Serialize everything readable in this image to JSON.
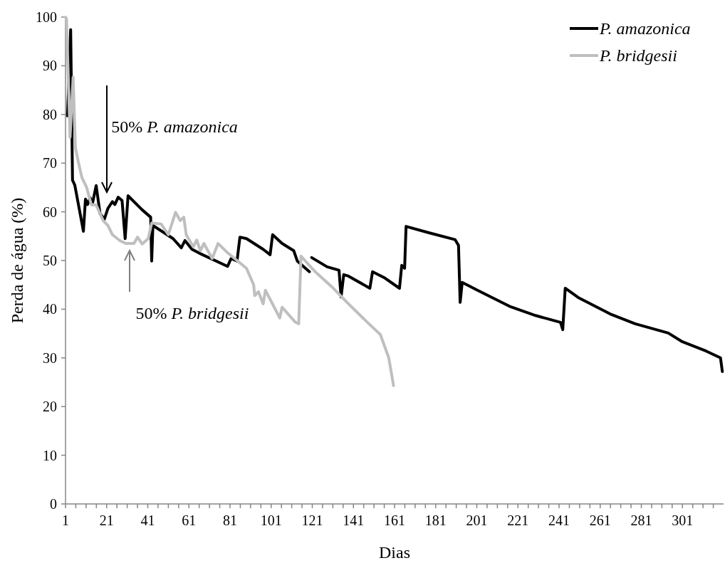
{
  "chart_data": {
    "type": "line",
    "xlabel": "Dias",
    "ylabel": "Perda de água (%)",
    "xlim": [
      1,
      321
    ],
    "ylim": [
      0,
      100
    ],
    "yticks": [
      0,
      10,
      20,
      30,
      40,
      50,
      60,
      70,
      80,
      90,
      100
    ],
    "xticks": [
      1,
      {
        "value": 6,
        "label": null
      },
      {
        "value": 11,
        "label": null
      },
      {
        "value": 16,
        "label": null
      },
      21,
      {
        "value": 26,
        "label": null
      },
      {
        "value": 31,
        "label": null
      },
      {
        "value": 36,
        "label": null
      },
      41,
      {
        "value": 46,
        "label": null
      },
      {
        "value": 51,
        "label": null
      },
      {
        "value": 56,
        "label": null
      },
      61,
      {
        "value": 66,
        "label": null
      },
      {
        "value": 71,
        "label": null
      },
      {
        "value": 76,
        "label": null
      },
      81,
      {
        "value": 86,
        "label": null
      },
      {
        "value": 91,
        "label": null
      },
      {
        "value": 96,
        "label": null
      },
      101,
      {
        "value": 106,
        "label": null
      },
      {
        "value": 111,
        "label": null
      },
      {
        "value": 116,
        "label": null
      },
      121,
      {
        "value": 126,
        "label": null
      },
      {
        "value": 131,
        "label": null
      },
      {
        "value": 136,
        "label": null
      },
      141,
      {
        "value": 146,
        "label": null
      },
      {
        "value": 151,
        "label": null
      },
      {
        "value": 156,
        "label": null
      },
      161,
      {
        "value": 166,
        "label": null
      },
      {
        "value": 171,
        "label": null
      },
      {
        "value": 176,
        "label": null
      },
      181,
      {
        "value": 186,
        "label": null
      },
      {
        "value": 191,
        "label": null
      },
      {
        "value": 196,
        "label": null
      },
      201,
      {
        "value": 206,
        "label": null
      },
      {
        "value": 211,
        "label": null
      },
      {
        "value": 216,
        "label": null
      },
      221,
      {
        "value": 226,
        "label": null
      },
      {
        "value": 231,
        "label": null
      },
      {
        "value": 236,
        "label": null
      },
      241,
      {
        "value": 246,
        "label": null
      },
      {
        "value": 251,
        "label": null
      },
      {
        "value": 256,
        "label": null
      },
      261,
      {
        "value": 266,
        "label": null
      },
      {
        "value": 271,
        "label": null
      },
      {
        "value": 276,
        "label": null
      },
      281,
      {
        "value": 286,
        "label": null
      },
      {
        "value": 291,
        "label": null
      },
      {
        "value": 296,
        "label": null
      },
      301,
      {
        "value": 306,
        "label": null
      },
      {
        "value": 311,
        "label": null
      },
      {
        "value": 316,
        "label": null
      }
    ],
    "grid": false,
    "legend": "top right",
    "marker": "none",
    "line_style": "solid",
    "series": [
      {
        "name": "P. amazonica",
        "color": "#000000",
        "x": [
          2,
          3.5,
          4.4,
          5.5,
          9.7,
          10.7,
          11.7,
          13,
          14,
          15.9,
          17.8,
          19.9,
          21.6,
          23.8,
          25,
          26.6,
          28.5,
          30,
          31.4,
          38.3,
          42.4,
          42.9,
          43.5,
          53.3,
          57.3,
          59.1,
          62.5,
          67.1,
          79.8,
          81.5,
          84.4,
          85.8,
          89,
          97.1,
          100.5,
          101.7,
          106.3,
          112,
          113.7,
          119.6,
          null,
          120.7,
          128.2,
          134,
          135,
          136.3,
          138.6,
          149,
          150.3,
          155.9,
          163.4,
          164.5,
          165.9,
          166.6,
          177.7,
          190.4,
          192.1,
          192.9,
          193.9,
          200.8,
          206.5,
          216.9,
          229.6,
          241.7,
          242.8,
          244,
          250.3,
          266.5,
          278,
          294.1,
          301,
          312.5,
          319.5,
          320.4
        ],
        "values": [
          79.7,
          97.4,
          66.5,
          65.5,
          56,
          62.6,
          61.5,
          62.9,
          61.5,
          65.4,
          59.6,
          58.5,
          60.7,
          62.1,
          61.5,
          63,
          62.3,
          54.5,
          63.3,
          60.4,
          58.9,
          49.9,
          57.2,
          54.5,
          52.6,
          54.1,
          52.3,
          51.3,
          48.8,
          50.4,
          49.9,
          54.8,
          54.5,
          52.3,
          51.2,
          55.3,
          53.5,
          52,
          49.9,
          47.7,
          null,
          50.6,
          48.7,
          48,
          42.5,
          47.1,
          46.8,
          44.3,
          47.7,
          46.5,
          44.3,
          49,
          48.4,
          57,
          55.7,
          54.3,
          53.1,
          41.4,
          45.5,
          44,
          42.8,
          40.6,
          38.7,
          37.3,
          35.8,
          44.3,
          42.4,
          38.9,
          37,
          35.1,
          33.3,
          31.4,
          30,
          27.2
        ]
      },
      {
        "name": "P. bridgesii",
        "color": "#bfbfbf",
        "x": [
          1,
          1.5,
          3.2,
          4.7,
          5.8,
          7.2,
          9,
          11.3,
          13.5,
          15.9,
          19.3,
          21.6,
          23.8,
          27.4,
          30.3,
          34.3,
          36,
          38.3,
          41.2,
          42.9,
          47.5,
          51,
          54.5,
          56.8,
          58.5,
          59.7,
          63.1,
          64.8,
          66.6,
          68.3,
          72.3,
          75.2,
          79.8,
          89,
          92.5,
          93,
          94.8,
          97.1,
          98.2,
          105.2,
          106.3,
          112.6,
          114.4,
          115.5,
          122.4,
          130.5,
          138.6,
          147.8,
          154.1,
          158.2,
          160.5
        ],
        "values": [
          100,
          99.6,
          75.3,
          87.7,
          73.2,
          70.3,
          67,
          65,
          61.5,
          61.4,
          58.2,
          57.2,
          55.3,
          54.1,
          53.5,
          53.5,
          54.8,
          53.4,
          54.5,
          57.7,
          57.5,
          55.3,
          59.9,
          58.2,
          58.9,
          55.3,
          52.8,
          54.2,
          52,
          53.5,
          50.4,
          53.5,
          51.6,
          48.4,
          45,
          42.8,
          43.6,
          41.1,
          43.9,
          38.2,
          40.4,
          37.4,
          37,
          50.9,
          47.7,
          44.6,
          41.1,
          37.3,
          34.8,
          30,
          24.3
        ]
      }
    ],
    "annotations": [
      "50% P. amazonica",
      "50% P. bridgesii"
    ]
  }
}
